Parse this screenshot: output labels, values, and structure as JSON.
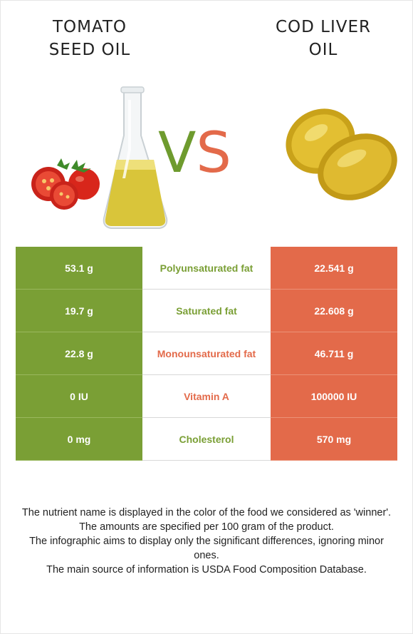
{
  "left_food": {
    "title_line1": "TOMATO",
    "title_line2": "SEED OIL",
    "color": "#7a9f35"
  },
  "right_food": {
    "title_line1": "COD LIVER",
    "title_line2": "OIL",
    "color": "#e36a4a"
  },
  "vs": {
    "v": "V",
    "s": "S"
  },
  "rows": [
    {
      "left": "53.1 g",
      "name": "Polyunsaturated fat",
      "right": "22.541 g",
      "winner": "left"
    },
    {
      "left": "19.7 g",
      "name": "Saturated fat",
      "right": "22.608 g",
      "winner": "left"
    },
    {
      "left": "22.8 g",
      "name": "Monounsaturated fat",
      "right": "46.711 g",
      "winner": "right"
    },
    {
      "left": "0 IU",
      "name": "Vitamin A",
      "right": "100000 IU",
      "winner": "right"
    },
    {
      "left": "0 mg",
      "name": "Cholesterol",
      "right": "570 mg",
      "winner": "left"
    }
  ],
  "notes": [
    "The nutrient name is displayed in the color of the food we considered as 'winner'.",
    "The amounts are specified per 100 gram of the product.",
    "The infographic aims to display only the significant differences, ignoring minor ones.",
    "The main source of information is USDA Food Composition Database."
  ]
}
